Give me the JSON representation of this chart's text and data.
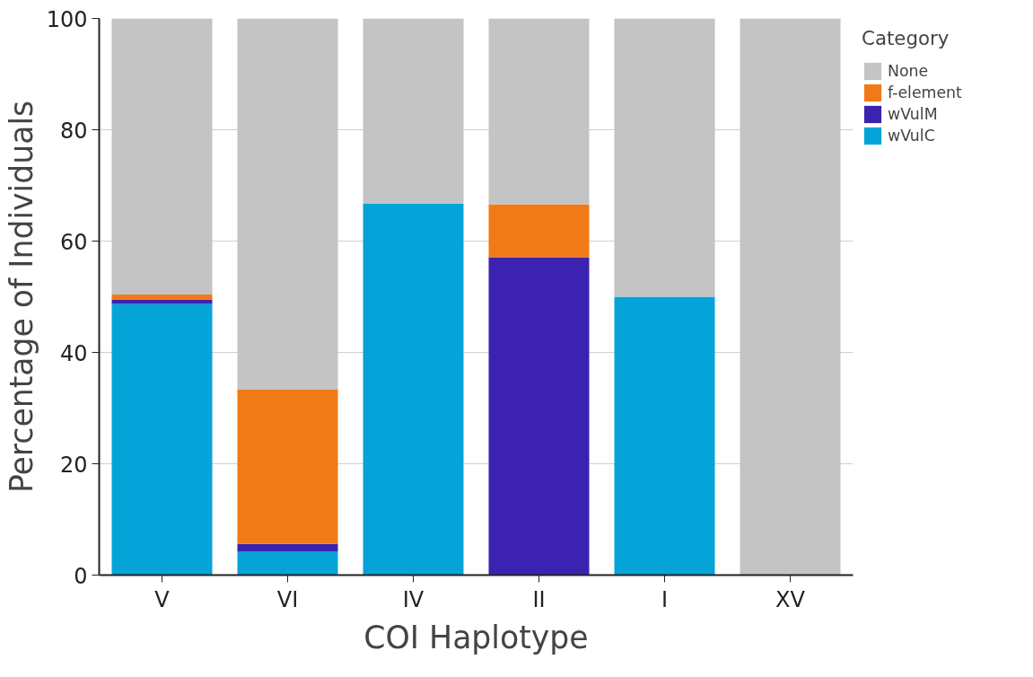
{
  "chart_data": {
    "type": "bar",
    "stacked": true,
    "xlabel": "COI Haplotype",
    "ylabel": "Percentage of Individuals",
    "legend_title": "Category",
    "categories": [
      "V",
      "VI",
      "IV",
      "II",
      "I",
      "XV"
    ],
    "series": [
      {
        "name": "wVulC",
        "color": "#05a4d8",
        "values": [
          48.7,
          4.2,
          66.7,
          0,
          50,
          0
        ]
      },
      {
        "name": "wVulM",
        "color": "#3b22b0",
        "values": [
          0.8,
          1.4,
          0,
          57.1,
          0,
          0
        ]
      },
      {
        "name": "f-element",
        "color": "#f07b16",
        "values": [
          0.9,
          27.8,
          0,
          9.5,
          0,
          0
        ]
      },
      {
        "name": "None",
        "color": "#c4c4c4",
        "values": [
          49.6,
          66.6,
          33.3,
          33.4,
          50,
          100
        ]
      }
    ],
    "ylim": [
      0,
      100
    ],
    "yticks": [
      0,
      20,
      40,
      60,
      80,
      100
    ],
    "grid": "y",
    "legend": "top right"
  }
}
